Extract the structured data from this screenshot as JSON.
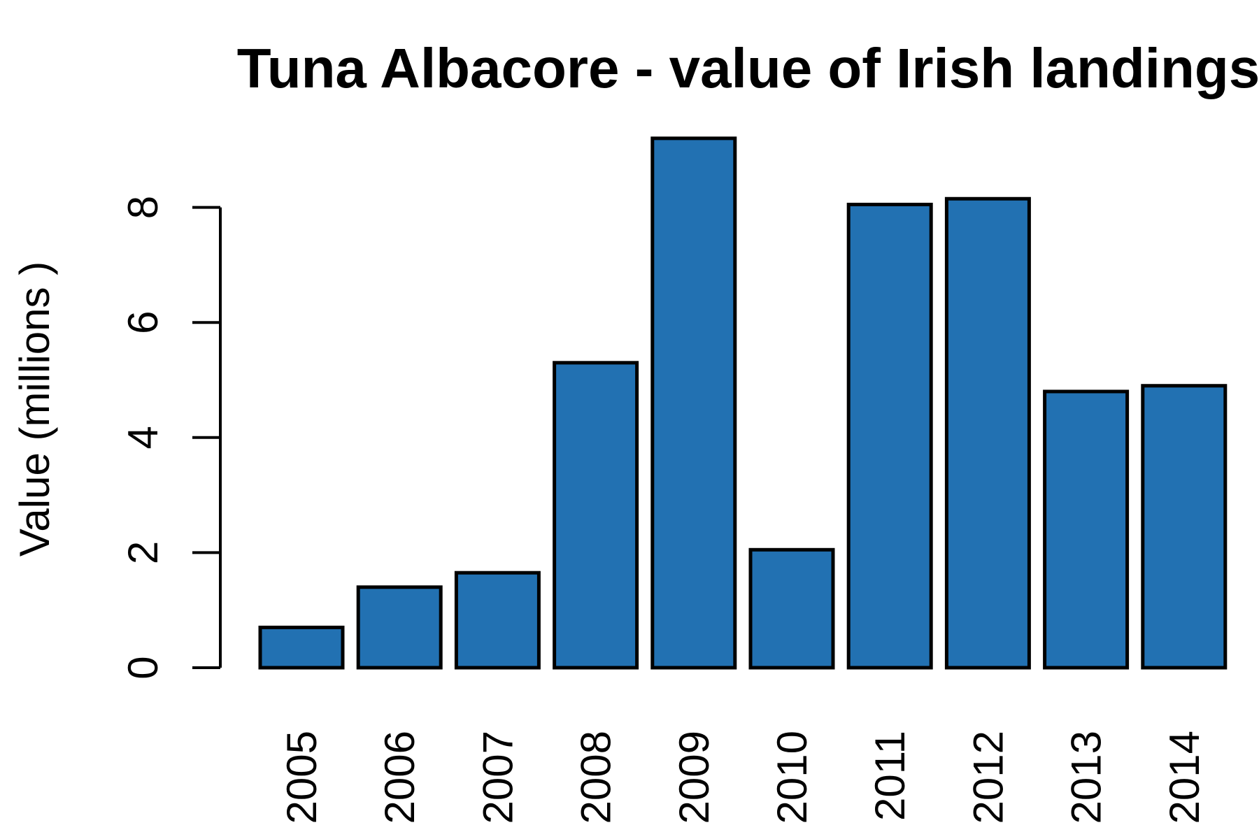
{
  "chart_data": {
    "type": "bar",
    "title": "Tuna Albacore - value of Irish landings",
    "xlabel": "",
    "ylabel": "Value (millions )",
    "categories": [
      "2005",
      "2006",
      "2007",
      "2008",
      "2009",
      "2010",
      "2011",
      "2012",
      "2013",
      "2014"
    ],
    "values": [
      0.7,
      1.4,
      1.65,
      5.3,
      9.2,
      2.05,
      8.05,
      8.15,
      4.8,
      4.9
    ],
    "yticks": [
      0,
      2,
      4,
      6,
      8
    ],
    "ylim": [
      0,
      9.2
    ],
    "bar_color": "#2271b2",
    "grid": false,
    "legend": "none"
  }
}
